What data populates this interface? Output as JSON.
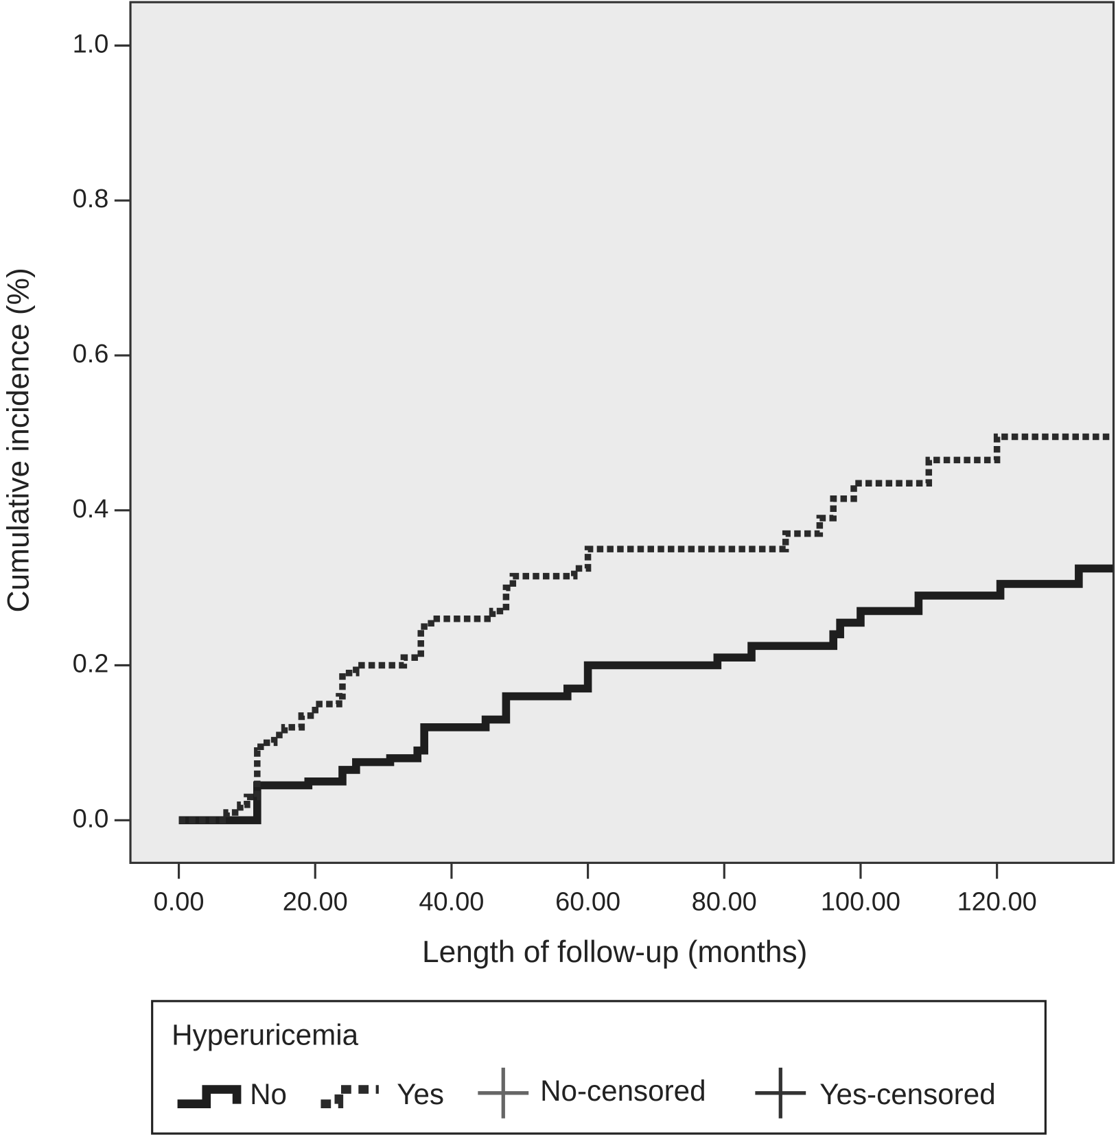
{
  "chart_data": {
    "type": "step",
    "x_label": "Length of follow-up (months)",
    "y_label": "Cumulative incidence (%)",
    "legend_title": "Hyperuricemia",
    "xlim": [
      -7.1,
      137.1
    ],
    "ylim": [
      -0.055,
      1.056
    ],
    "xticks": [
      {
        "value": 0,
        "label": "0.00"
      },
      {
        "value": 20,
        "label": "20.00"
      },
      {
        "value": 40,
        "label": "40.00"
      },
      {
        "value": 60,
        "label": "60.00"
      },
      {
        "value": 80,
        "label": "80.00"
      },
      {
        "value": 100,
        "label": "100.00"
      },
      {
        "value": 120,
        "label": "120.00"
      }
    ],
    "yticks": [
      {
        "value": 0,
        "label": "0.0"
      },
      0.2,
      0.4,
      0.6,
      0.8,
      {
        "value": 1,
        "label": "1.0"
      }
    ],
    "series": [
      {
        "name": "No",
        "censored_name": "No-censored",
        "color": "#1e1e1e",
        "dashed": false,
        "x": [
          0,
          11.5,
          19,
          24,
          26,
          31,
          35,
          36,
          45,
          48,
          57,
          60,
          79,
          84,
          96,
          97,
          100,
          108.5,
          120.5,
          132,
          137
        ],
        "values": [
          0,
          0.045,
          0.05,
          0.065,
          0.075,
          0.08,
          0.09,
          0.12,
          0.13,
          0.16,
          0.17,
          0.2,
          0.21,
          0.225,
          0.24,
          0.255,
          0.27,
          0.29,
          0.305,
          0.325,
          0.325
        ]
      },
      {
        "name": "Yes",
        "censored_name": "Yes-censored",
        "color": "#2a2a2a",
        "dashed": true,
        "x": [
          0,
          7,
          9,
          10,
          11.5,
          12,
          14,
          15.5,
          18,
          20,
          23.5,
          24,
          26,
          33,
          35.5,
          37,
          46,
          48,
          49,
          58,
          60,
          89,
          94,
          96,
          99,
          110,
          120,
          137
        ],
        "values": [
          0,
          0.01,
          0.02,
          0.03,
          0.09,
          0.1,
          0.11,
          0.12,
          0.135,
          0.15,
          0.16,
          0.19,
          0.2,
          0.21,
          0.25,
          0.26,
          0.27,
          0.3,
          0.315,
          0.325,
          0.35,
          0.37,
          0.39,
          0.415,
          0.435,
          0.465,
          0.495,
          0.495
        ]
      }
    ]
  }
}
